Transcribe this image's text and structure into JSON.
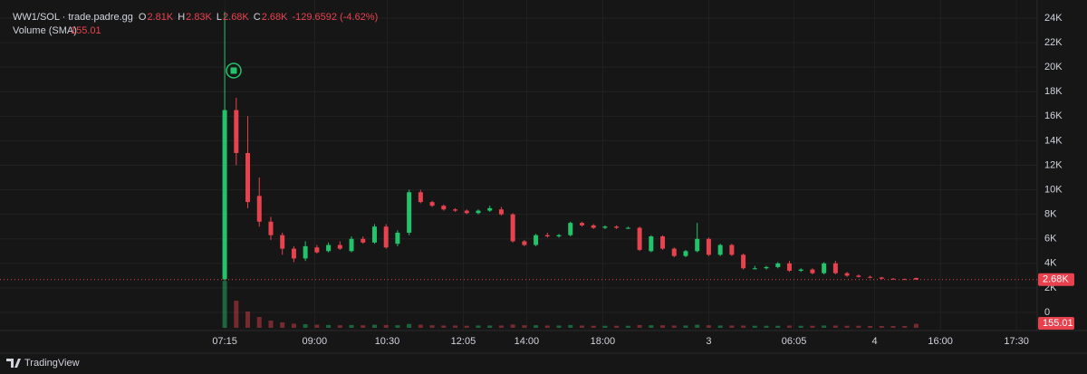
{
  "chart_data": {
    "type": "candlestick",
    "title": "WW1/SOL · trade.padre.gg",
    "legend_ohlc": [
      {
        "label": "O",
        "value": "2.81K"
      },
      {
        "label": "H",
        "value": "2.83K"
      },
      {
        "label": "L",
        "value": "2.68K"
      },
      {
        "label": "C",
        "value": "2.68K"
      }
    ],
    "change": "-129.6592 (-4.62%)",
    "volume_title": "Volume (SMA)",
    "last_price_label": "2.68K",
    "last_volume_label": "155.01",
    "up_color": "#22c36b",
    "down_color": "#e8424f",
    "grid": true,
    "x": [
      0,
      1,
      2,
      3,
      4,
      5,
      6,
      7,
      8,
      9,
      10,
      11,
      12,
      13,
      14,
      15,
      16,
      17,
      18,
      19,
      20,
      21,
      22,
      23,
      24,
      25,
      26,
      27,
      28,
      29,
      30,
      31,
      32,
      33,
      34,
      35,
      36,
      37,
      38,
      39,
      40,
      41,
      42,
      43,
      44,
      45,
      46,
      47,
      48,
      49,
      50,
      51,
      52,
      53,
      54,
      55,
      56,
      57,
      58,
      59,
      60
    ],
    "open": [
      2700,
      16500,
      13000,
      9500,
      7400,
      6300,
      5200,
      4400,
      5300,
      5000,
      5500,
      5000,
      6000,
      5700,
      7000,
      5600,
      6500,
      9800,
      9000,
      8700,
      8400,
      8300,
      8100,
      8300,
      8400,
      8000,
      5800,
      5500,
      6300,
      6200,
      6300,
      7300,
      7100,
      6900,
      7000,
      6900,
      6900,
      5000,
      6200,
      5200,
      4600,
      5000,
      6000,
      4700,
      5500,
      4700,
      3600,
      3600,
      3700,
      4000,
      3400,
      3500,
      3200,
      4000,
      3200,
      3000,
      2900,
      2850,
      2750,
      2720,
      2810
    ],
    "high": [
      24500,
      17500,
      16000,
      11000,
      7800,
      6500,
      5400,
      5800,
      5500,
      5700,
      5800,
      6200,
      6200,
      7200,
      7200,
      6700,
      10000,
      10000,
      9100,
      8800,
      8500,
      8400,
      8400,
      8700,
      8600,
      8100,
      5900,
      6400,
      6500,
      6400,
      7400,
      7400,
      7200,
      7100,
      7100,
      7000,
      7000,
      6300,
      6300,
      5300,
      5100,
      7300,
      6100,
      5600,
      5600,
      4800,
      3800,
      3800,
      4100,
      4200,
      3600,
      3600,
      4100,
      4200,
      3300,
      3100,
      3000,
      2900,
      2800,
      2760,
      2830
    ],
    "low": [
      2600,
      12000,
      8500,
      7000,
      5900,
      4700,
      4100,
      4200,
      4800,
      4900,
      5100,
      4900,
      5600,
      5600,
      5200,
      5400,
      6300,
      8900,
      8600,
      8300,
      8200,
      8000,
      8000,
      8200,
      7900,
      5700,
      5400,
      5400,
      6100,
      6100,
      6200,
      7000,
      6800,
      6800,
      6800,
      6800,
      5000,
      4900,
      5100,
      4500,
      4500,
      4900,
      4600,
      4600,
      4600,
      3500,
      3500,
      3500,
      3600,
      3300,
      3300,
      3100,
      3100,
      3100,
      2900,
      2850,
      2800,
      2700,
      2700,
      2680,
      2680
    ],
    "close": [
      16500,
      13000,
      9000,
      7400,
      6300,
      5200,
      4400,
      5400,
      4900,
      5500,
      5200,
      6000,
      5700,
      7000,
      5300,
      6500,
      9800,
      9000,
      8700,
      8400,
      8300,
      8100,
      8300,
      8500,
      8000,
      5800,
      5500,
      6300,
      6200,
      6300,
      7300,
      7100,
      6900,
      7000,
      6900,
      6900,
      5100,
      6200,
      5200,
      4600,
      5000,
      6000,
      4700,
      5500,
      4700,
      3600,
      3600,
      3700,
      4000,
      3400,
      3500,
      3200,
      4000,
      3200,
      3000,
      2900,
      2850,
      2750,
      2720,
      2700,
      2680
    ],
    "volume": {
      "name": "Volume (SMA)",
      "axis": "y2",
      "values": [
        1820,
        1050,
        630,
        420,
        280,
        210,
        160,
        140,
        120,
        110,
        100,
        110,
        100,
        120,
        110,
        100,
        150,
        120,
        100,
        90,
        90,
        80,
        90,
        90,
        90,
        130,
        100,
        100,
        90,
        90,
        110,
        90,
        80,
        80,
        80,
        80,
        110,
        100,
        100,
        90,
        90,
        120,
        100,
        90,
        90,
        90,
        80,
        80,
        80,
        90,
        80,
        80,
        90,
        90,
        80,
        80,
        70,
        70,
        70,
        70,
        155.01
      ]
    },
    "xlim": [
      -19.5,
      70.5
    ],
    "xticks": [
      {
        "value": 0,
        "label": "07:15"
      },
      {
        "value": 7.8,
        "label": "09:00"
      },
      {
        "value": 14.1,
        "label": "10:30"
      },
      {
        "value": 20.7,
        "label": "12:05"
      },
      {
        "value": 26.2,
        "label": "14:00"
      },
      {
        "value": 32.8,
        "label": "18:00"
      },
      {
        "value": 42,
        "label": "3"
      },
      {
        "value": 49.4,
        "label": "06:05"
      },
      {
        "value": 56.4,
        "label": "4"
      },
      {
        "value": 62.1,
        "label": "16:00"
      },
      {
        "value": 68.7,
        "label": "17:30"
      }
    ],
    "ylim": [
      0,
      24000
    ],
    "yticks": [
      {
        "value": 0,
        "label": "0"
      },
      {
        "value": 2000,
        "label": "2K"
      },
      {
        "value": 4000,
        "label": "4K"
      },
      {
        "value": 6000,
        "label": "6K"
      },
      {
        "value": 8000,
        "label": "8K"
      },
      {
        "value": 10000,
        "label": "10K"
      },
      {
        "value": 12000,
        "label": "12K"
      },
      {
        "value": 14000,
        "label": "14K"
      },
      {
        "value": 16000,
        "label": "16K"
      },
      {
        "value": 18000,
        "label": "18K"
      },
      {
        "value": 20000,
        "label": "20K"
      },
      {
        "value": 22000,
        "label": "22K"
      },
      {
        "value": 24000,
        "label": "24K"
      }
    ],
    "y2lim": [
      0,
      12000
    ],
    "brand": "TradingView"
  }
}
